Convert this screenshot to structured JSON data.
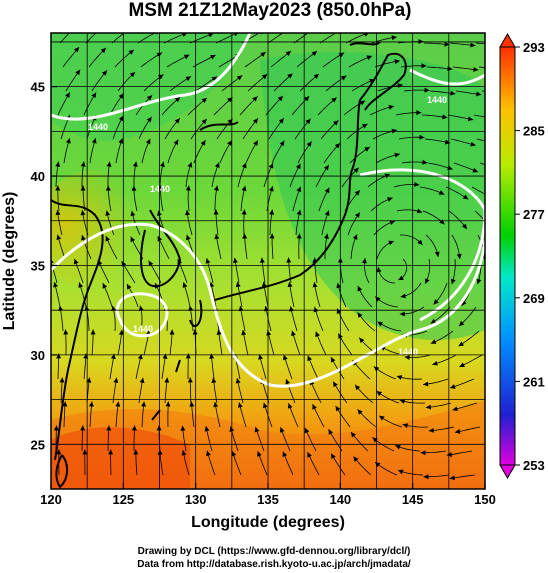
{
  "title": "MSM 21Z12May2023 (850.0hPa)",
  "map": {
    "xlabel": "Longitude (degrees)",
    "ylabel": "Latitude  (degrees)",
    "xlim": [
      120,
      150
    ],
    "ylim": [
      22.5,
      48
    ],
    "xticks": [
      "120",
      "125",
      "130",
      "135",
      "140",
      "145",
      "150"
    ],
    "yticks": [
      "25",
      "30",
      "35",
      "40",
      "45"
    ],
    "contour_labels": [
      "1440",
      "1440",
      "1440",
      "1440",
      "1440"
    ]
  },
  "colorbar": {
    "ticks": [
      "293",
      "285",
      "277",
      "269",
      "261",
      "253"
    ],
    "min": 253,
    "max": 293,
    "colors": [
      "#e000e0",
      "#1010c8",
      "#00a0ff",
      "#00e8c0",
      "#00d000",
      "#b0e800",
      "#ffc800",
      "#ff5000"
    ]
  },
  "footer": {
    "line1": "Drawing by DCL (https://www.gfd-dennou.org/library/dcl/)",
    "line2": "Data from http://database.rish.kyoto-u.ac.jp/arch/jmadata/"
  }
}
